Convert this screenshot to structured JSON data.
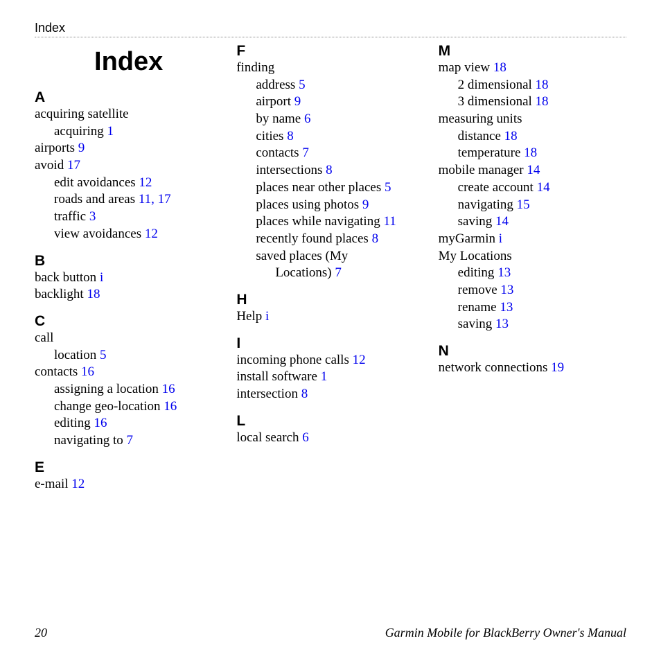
{
  "header": "Index",
  "title": "Index",
  "link_color": "#0000ee",
  "text_color": "#000000",
  "footer": {
    "page_number": "20",
    "manual_title": "Garmin Mobile for BlackBerry Owner's Manual"
  },
  "sections": [
    {
      "letter": "A",
      "entries": [
        {
          "text": "acquiring satellite",
          "page": "",
          "indent": 0
        },
        {
          "text": "acquiring",
          "page": "1",
          "indent": 1
        },
        {
          "text": "airports",
          "page": "9",
          "indent": 0
        },
        {
          "text": "avoid",
          "page": "17",
          "indent": 0
        },
        {
          "text": "edit avoidances",
          "page": "12",
          "indent": 1
        },
        {
          "text": "roads and areas",
          "page": "11, 17",
          "indent": 1
        },
        {
          "text": "traffic",
          "page": "3",
          "indent": 1
        },
        {
          "text": "view avoidances",
          "page": "12",
          "indent": 1
        }
      ]
    },
    {
      "letter": "B",
      "entries": [
        {
          "text": "back button",
          "page": "i",
          "indent": 0
        },
        {
          "text": "backlight",
          "page": "18",
          "indent": 0
        }
      ]
    },
    {
      "letter": "C",
      "entries": [
        {
          "text": "call",
          "page": "",
          "indent": 0
        },
        {
          "text": "location",
          "page": "5",
          "indent": 1
        },
        {
          "text": "contacts",
          "page": "16",
          "indent": 0
        },
        {
          "text": "assigning a location",
          "page": "16",
          "indent": 1
        },
        {
          "text": "change geo-location",
          "page": "16",
          "indent": 1
        },
        {
          "text": "editing",
          "page": "16",
          "indent": 1
        },
        {
          "text": "navigating to",
          "page": "7",
          "indent": 1
        }
      ]
    },
    {
      "letter": "E",
      "entries": [
        {
          "text": "e-mail",
          "page": "12",
          "indent": 0
        }
      ]
    },
    {
      "letter": "F",
      "entries": [
        {
          "text": "finding",
          "page": "",
          "indent": 0
        },
        {
          "text": "address",
          "page": "5",
          "indent": 1
        },
        {
          "text": "airport",
          "page": "9",
          "indent": 1
        },
        {
          "text": "by name",
          "page": "6",
          "indent": 1
        },
        {
          "text": "cities",
          "page": "8",
          "indent": 1
        },
        {
          "text": "contacts",
          "page": "7",
          "indent": 1
        },
        {
          "text": "intersections",
          "page": "8",
          "indent": 1
        },
        {
          "text": "places near other places",
          "page": "5",
          "indent": 1
        },
        {
          "text": "places using photos",
          "page": "9",
          "indent": 1
        },
        {
          "text": "places while navigating",
          "page": "11",
          "indent": 1
        },
        {
          "text": "recently found places",
          "page": "8",
          "indent": 1
        },
        {
          "text": "saved places (My Locations)",
          "page": "7",
          "indent": 1,
          "wrap_indent": 2
        }
      ]
    },
    {
      "letter": "H",
      "entries": [
        {
          "text": "Help",
          "page": "i",
          "indent": 0
        }
      ]
    },
    {
      "letter": "I",
      "entries": [
        {
          "text": "incoming phone calls",
          "page": "12",
          "indent": 0
        },
        {
          "text": "install software",
          "page": "1",
          "indent": 0
        },
        {
          "text": "intersection",
          "page": "8",
          "indent": 0
        }
      ]
    },
    {
      "letter": "L",
      "entries": [
        {
          "text": "local search",
          "page": "6",
          "indent": 0
        }
      ]
    },
    {
      "letter": "M",
      "entries": [
        {
          "text": "map view",
          "page": "18",
          "indent": 0
        },
        {
          "text": "2 dimensional",
          "page": "18",
          "indent": 1
        },
        {
          "text": "3 dimensional",
          "page": "18",
          "indent": 1
        },
        {
          "text": "measuring units",
          "page": "",
          "indent": 0
        },
        {
          "text": "distance",
          "page": "18",
          "indent": 1
        },
        {
          "text": "temperature",
          "page": "18",
          "indent": 1
        },
        {
          "text": "mobile manager",
          "page": "14",
          "indent": 0
        },
        {
          "text": "create account",
          "page": "14",
          "indent": 1
        },
        {
          "text": "navigating",
          "page": "15",
          "indent": 1
        },
        {
          "text": "saving",
          "page": "14",
          "indent": 1
        },
        {
          "text": "myGarmin",
          "page": "i",
          "indent": 0
        },
        {
          "text": "My Locations",
          "page": "",
          "indent": 0
        },
        {
          "text": "editing",
          "page": "13",
          "indent": 1
        },
        {
          "text": "remove",
          "page": "13",
          "indent": 1
        },
        {
          "text": "rename",
          "page": "13",
          "indent": 1
        },
        {
          "text": "saving",
          "page": "13",
          "indent": 1
        }
      ]
    },
    {
      "letter": "N",
      "entries": [
        {
          "text": "network connections",
          "page": "19",
          "indent": 0
        }
      ]
    }
  ]
}
